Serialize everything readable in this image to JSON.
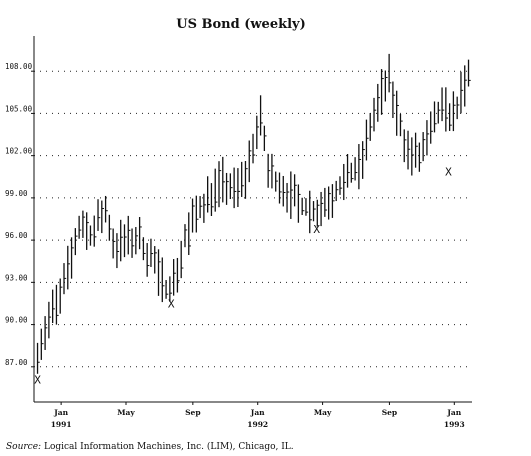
{
  "chart_data": {
    "type": "ohlc",
    "title": "US Bond (weekly)",
    "xlabel": "",
    "ylabel": "",
    "ylim": [
      84.5,
      110.5
    ],
    "xlim": [
      1990.862,
      1993.09
    ],
    "y_ticks": [
      87.0,
      90.0,
      93.0,
      96.0,
      99.0,
      102.0,
      105.0,
      108.0
    ],
    "y_tick_labels": [
      "87.00",
      "90.00",
      "93.00",
      "96.00",
      "99.00",
      "102.00",
      "105.00",
      "108.00"
    ],
    "x_ticks": [
      {
        "label": "Jan",
        "sublabel": "1991",
        "x": 1991.0
      },
      {
        "label": "May",
        "sublabel": "",
        "x": 1991.33
      },
      {
        "label": "Sep",
        "sublabel": "",
        "x": 1991.67
      },
      {
        "label": "Jan",
        "sublabel": "1992",
        "x": 1992.0
      },
      {
        "label": "May",
        "sublabel": "",
        "x": 1992.33
      },
      {
        "label": "Sep",
        "sublabel": "",
        "x": 1992.67
      },
      {
        "label": "Jan",
        "sublabel": "1993",
        "x": 1993.0
      }
    ],
    "grid": "horizontal-dotted",
    "anchors": [
      [
        1990.88,
        88.2
      ],
      [
        1990.94,
        90.5
      ],
      [
        1991.0,
        92.0
      ],
      [
        1991.05,
        94.8
      ],
      [
        1991.1,
        97.2
      ],
      [
        1991.16,
        96.3
      ],
      [
        1991.22,
        98.3
      ],
      [
        1991.27,
        95.6
      ],
      [
        1991.33,
        96.0
      ],
      [
        1991.4,
        96.0
      ],
      [
        1991.47,
        94.5
      ],
      [
        1991.53,
        92.6
      ],
      [
        1991.58,
        93.3
      ],
      [
        1991.63,
        96.0
      ],
      [
        1991.69,
        98.0
      ],
      [
        1991.75,
        99.2
      ],
      [
        1991.82,
        100.2
      ],
      [
        1991.88,
        99.5
      ],
      [
        1991.93,
        100.3
      ],
      [
        1991.98,
        103.0
      ],
      [
        1992.02,
        104.8
      ],
      [
        1992.05,
        101.0
      ],
      [
        1992.1,
        100.2
      ],
      [
        1992.16,
        99.3
      ],
      [
        1992.22,
        98.5
      ],
      [
        1992.3,
        98.0
      ],
      [
        1992.36,
        99.0
      ],
      [
        1992.41,
        99.7
      ],
      [
        1992.47,
        100.5
      ],
      [
        1992.52,
        101.2
      ],
      [
        1992.58,
        104.5
      ],
      [
        1992.63,
        106.5
      ],
      [
        1992.67,
        107.5
      ],
      [
        1992.7,
        105.5
      ],
      [
        1992.76,
        102.5
      ],
      [
        1992.82,
        101.8
      ],
      [
        1992.88,
        103.5
      ],
      [
        1992.93,
        105.2
      ],
      [
        1993.0,
        105.0
      ],
      [
        1993.05,
        106.8
      ],
      [
        1993.08,
        107.8
      ]
    ],
    "markers": [
      {
        "text": "X",
        "x": 1990.88,
        "y": 85.8
      },
      {
        "text": "X",
        "x": 1991.56,
        "y": 91.2
      },
      {
        "text": "X",
        "x": 1992.3,
        "y": 96.5
      },
      {
        "text": "X",
        "x": 1992.97,
        "y": 100.6
      }
    ]
  },
  "source": {
    "label": "Source:",
    "text": "Logical Information Machines, Inc. (LIM), Chicago, IL."
  }
}
